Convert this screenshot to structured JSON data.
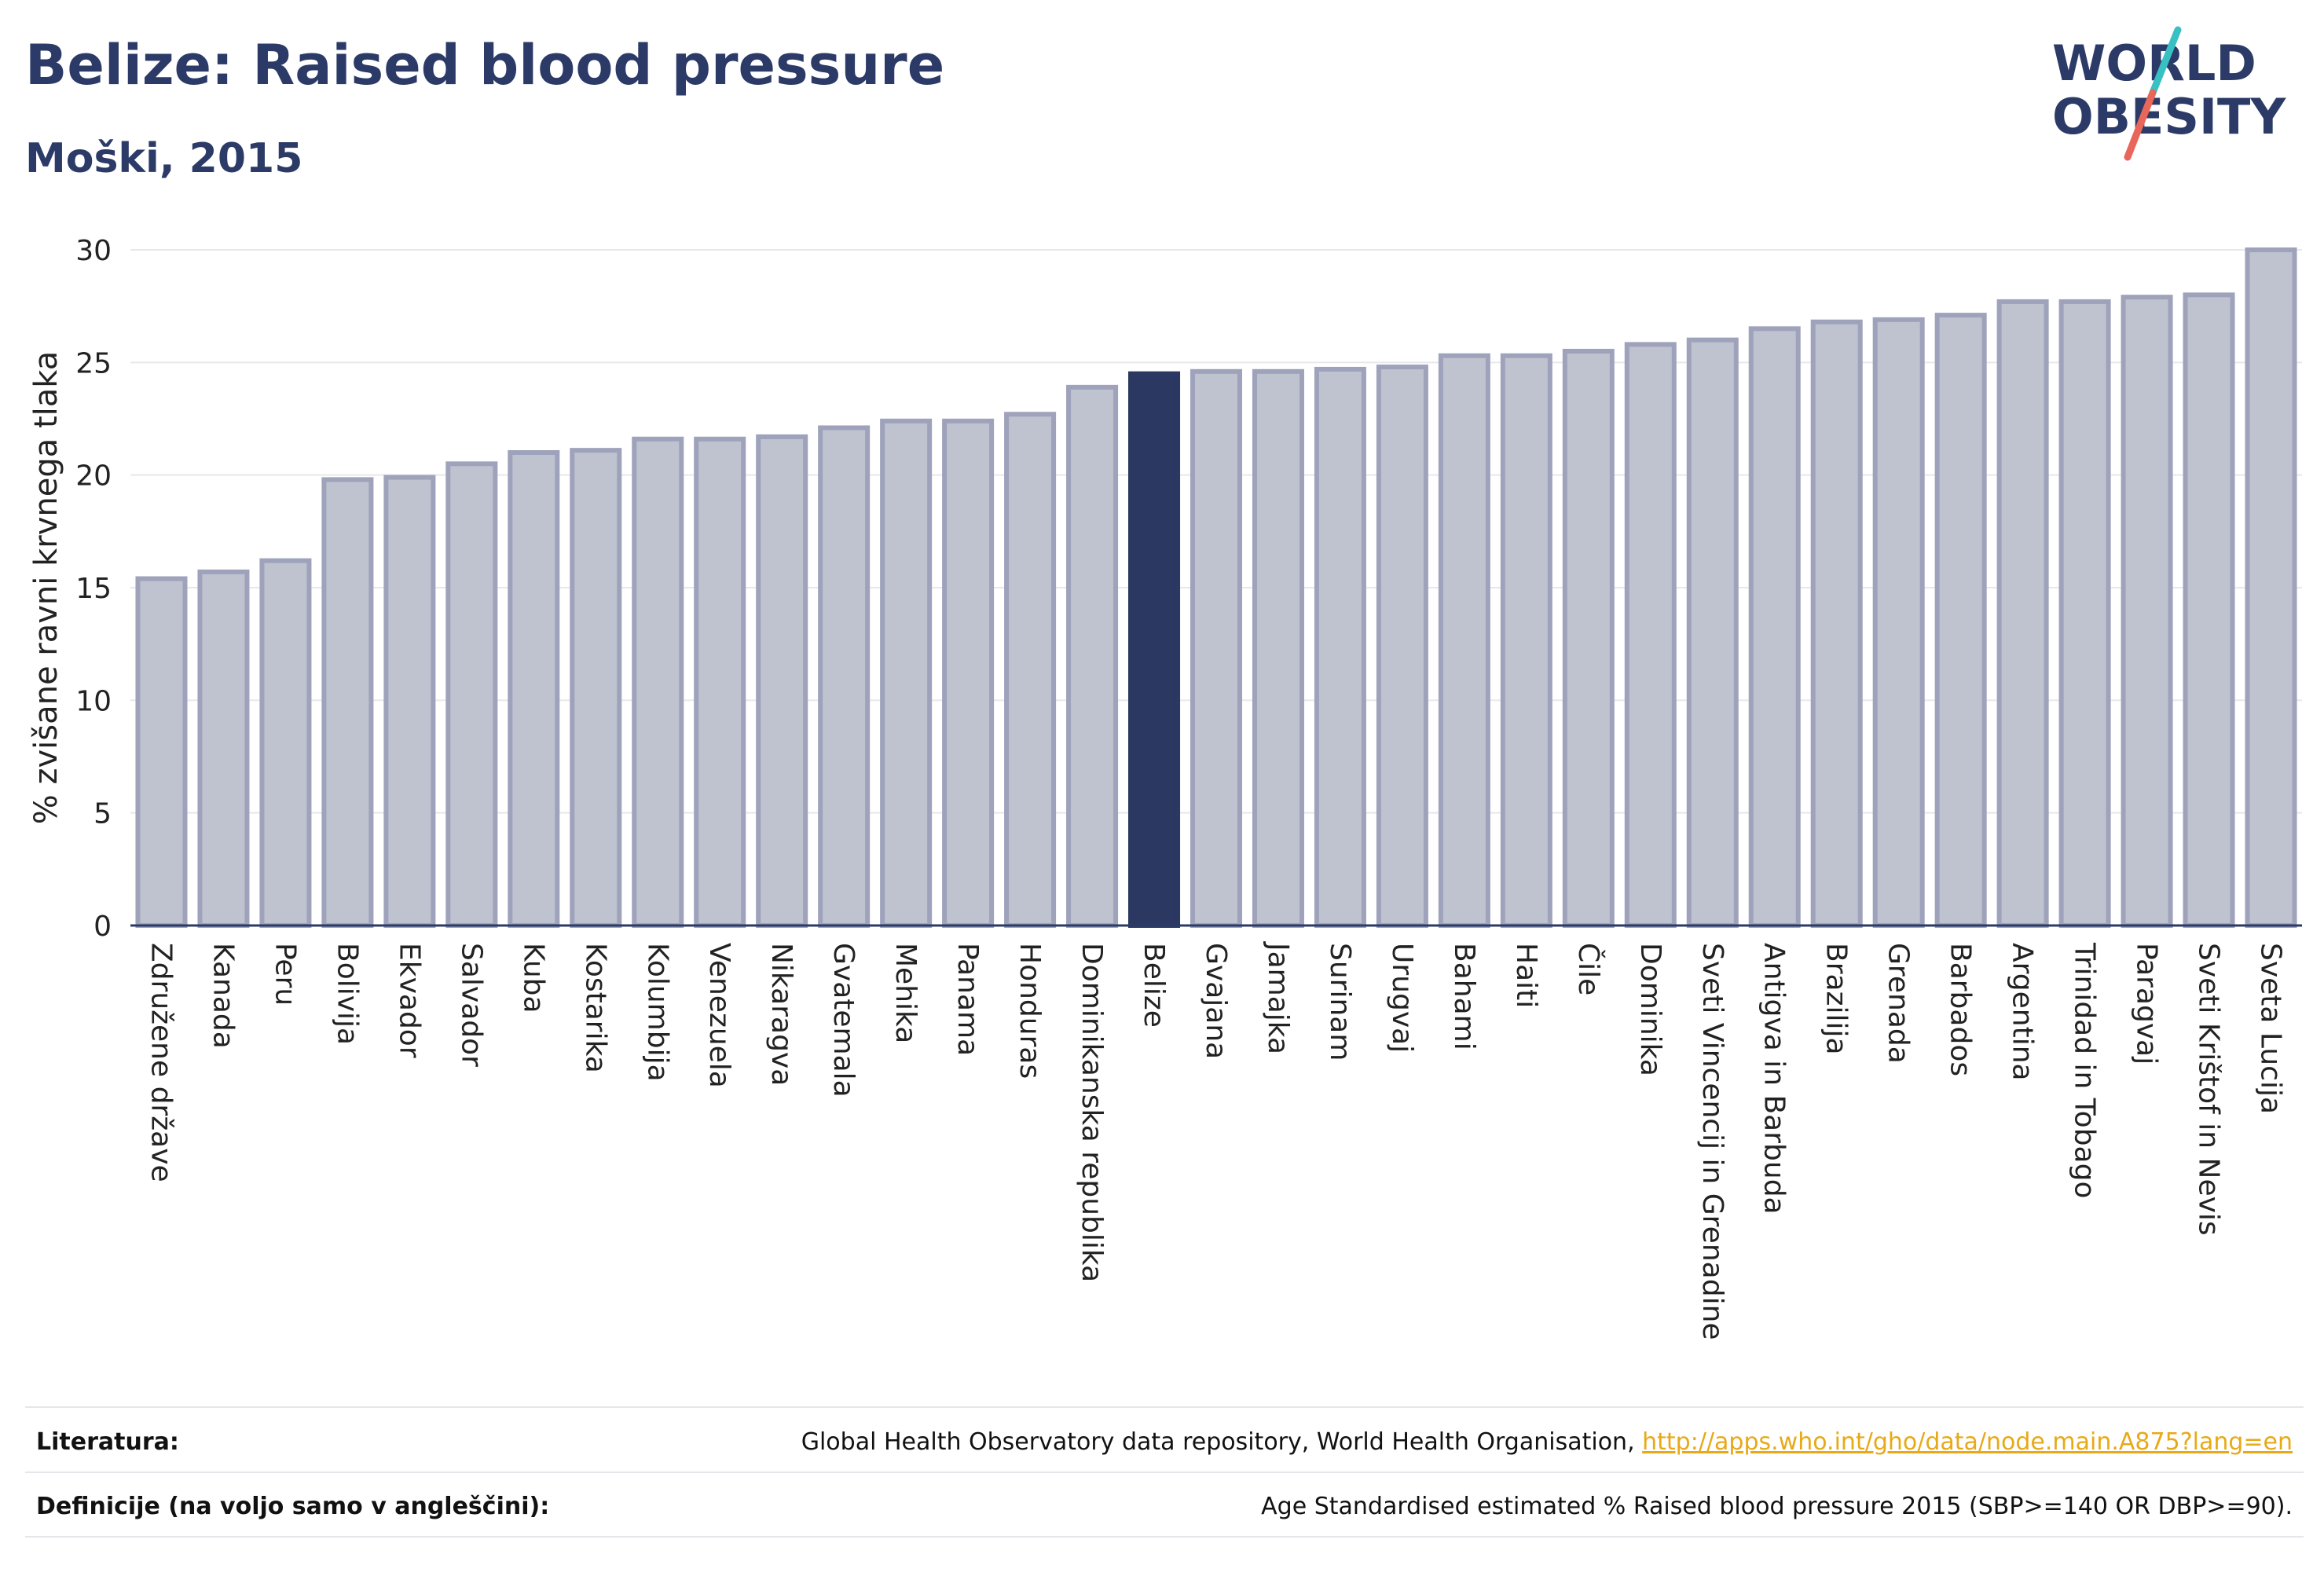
{
  "header": {
    "title": "Belize: Raised blood pressure",
    "subtitle": "Moški, 2015"
  },
  "logo": {
    "line1": "WORLD",
    "line2": "OBESITY"
  },
  "colors": {
    "bar": "#bfc2cf",
    "bar_border": "#9ea2bb",
    "highlight": "#2b3861",
    "grid": "#e8e8ec",
    "axis": "#2b3a67",
    "title": "#2b3a67",
    "logo_slash_teal": "#39c0c2",
    "logo_slash_red": "#e8665a"
  },
  "chart_data": {
    "type": "bar",
    "ylabel": "% zvišane ravni krvnega tlaka",
    "ylim": [
      0,
      30
    ],
    "yticks": [
      0,
      5,
      10,
      15,
      20,
      25,
      30
    ],
    "grid": true,
    "highlight": "Belize",
    "categories": [
      "Združene države",
      "Kanada",
      "Peru",
      "Bolivija",
      "Ekvador",
      "Salvador",
      "Kuba",
      "Kostarika",
      "Kolumbija",
      "Venezuela",
      "Nikaragva",
      "Gvatemala",
      "Mehika",
      "Panama",
      "Honduras",
      "Dominikanska republika",
      "Belize",
      "Gvajana",
      "Jamajka",
      "Surinam",
      "Urugvaj",
      "Bahami",
      "Haiti",
      "Čile",
      "Dominika",
      "Sveti Vincencij in Grenadine",
      "Antigva in Barbuda",
      "Brazilija",
      "Grenada",
      "Barbados",
      "Argentina",
      "Trinidad in Tobago",
      "Paragvaj",
      "Sveti Krištof in Nevis",
      "Sveta Lucija"
    ],
    "values": [
      15.4,
      15.7,
      16.2,
      19.8,
      19.9,
      20.5,
      21.0,
      21.1,
      21.6,
      21.6,
      21.7,
      22.1,
      22.4,
      22.4,
      22.7,
      23.9,
      24.5,
      24.6,
      24.6,
      24.7,
      24.8,
      25.3,
      25.3,
      25.5,
      25.8,
      26.0,
      26.5,
      26.8,
      26.9,
      27.1,
      27.7,
      27.7,
      27.9,
      28.0,
      30.0
    ]
  },
  "footer": {
    "references_label": "Literatura:",
    "references_text": "Global Health Observatory data repository, World Health Organisation, ",
    "references_link": "http://apps.who.int/gho/data/node.main.A875?lang=en",
    "definitions_label": "Definicije (na voljo samo v angleščini):",
    "definitions_text": "Age Standardised estimated % Raised blood pressure 2015 (SBP>=140 OR DBP>=90)."
  }
}
